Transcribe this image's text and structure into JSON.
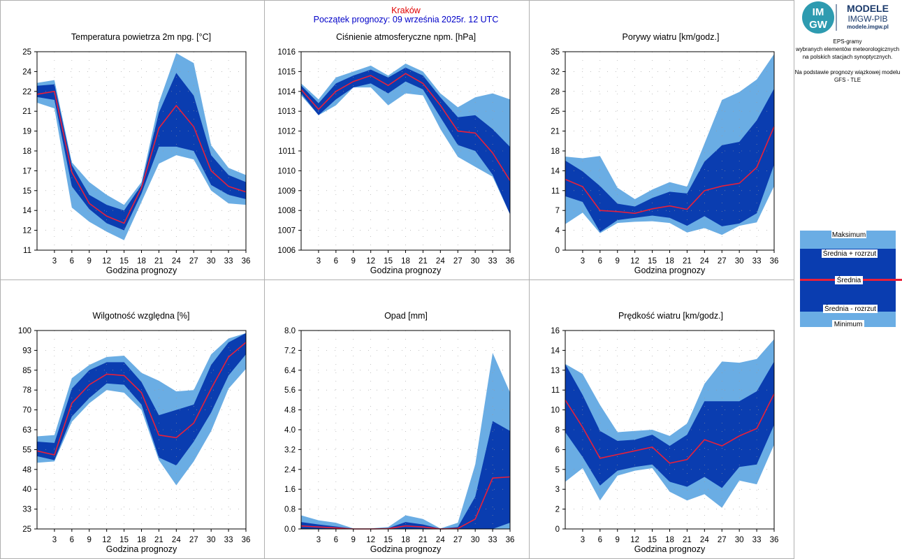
{
  "header": {
    "city": "Kraków",
    "start": "Początek prognozy: 09 września 2025r. 12 UTC"
  },
  "brand": {
    "logo_text_top": "IM",
    "logo_text_bottom": "GW",
    "name": "MODELE",
    "org": "IMGW-PIB",
    "site": "modele.imgw.pl",
    "colors": {
      "logo_bg": "#2e9bb0",
      "brand_text": "#1b3a6b"
    }
  },
  "info": [
    "EPS-gramy",
    "wybranych elementów meteorologicznych",
    "na polskich stacjach  synoptycznych.",
    "",
    "Na podstawie prognozy wiązkowej modelu",
    "GFS - TLE"
  ],
  "legend": {
    "max": "Maksimum",
    "mean_plus": "Średnia + rozrzut",
    "mean": "Średnia",
    "mean_minus": "Średnia - rozrzut",
    "min": "Minimum"
  },
  "colors": {
    "outer_band": "#6aade4",
    "inner_band": "#0a3db0",
    "mean_line": "#e8203a",
    "grid": "#9a9a9a"
  },
  "chart_data": [
    {
      "type": "area",
      "title": "Temperatura powietrza 2m npg. [°C]",
      "xlabel": "Godzina prognozy",
      "x": [
        0,
        3,
        6,
        9,
        12,
        15,
        18,
        21,
        24,
        27,
        30,
        33,
        36
      ],
      "xticks": [
        "3",
        "6",
        "9",
        "12",
        "15",
        "18",
        "21",
        "24",
        "27",
        "30",
        "33",
        "36"
      ],
      "ylim": [
        11,
        25
      ],
      "yticks": [
        "11",
        "12",
        "14",
        "15",
        "17",
        "18",
        "19",
        "21",
        "22",
        "24",
        "25"
      ],
      "max": [
        22.8,
        23.0,
        17.2,
        15.8,
        14.9,
        14.2,
        15.8,
        21.4,
        24.9,
        24.2,
        18.4,
        16.8,
        16.3
      ],
      "mean_plus": [
        22.6,
        22.7,
        17.0,
        14.9,
        14.2,
        13.8,
        15.6,
        20.7,
        23.5,
        21.9,
        17.7,
        16.3,
        15.8
      ],
      "mean": [
        22.0,
        22.2,
        16.5,
        14.3,
        13.4,
        12.9,
        15.4,
        19.6,
        21.2,
        19.7,
        16.6,
        15.5,
        15.1
      ],
      "mean_minus": [
        21.8,
        21.6,
        15.5,
        13.9,
        12.9,
        12.4,
        15.0,
        18.3,
        18.3,
        18.0,
        15.6,
        14.9,
        14.6
      ],
      "min": [
        21.4,
        21.0,
        14.0,
        13.0,
        12.3,
        11.7,
        14.4,
        17.1,
        17.7,
        17.4,
        15.2,
        14.3,
        14.2
      ]
    },
    {
      "type": "area",
      "title": "Ciśnienie atmosferyczne npm. [hPa]",
      "xlabel": "Godzina prognozy",
      "x": [
        0,
        3,
        6,
        9,
        12,
        15,
        18,
        21,
        24,
        27,
        30,
        33,
        36
      ],
      "xticks": [
        "3",
        "6",
        "9",
        "12",
        "15",
        "18",
        "21",
        "24",
        "27",
        "30",
        "33",
        "36"
      ],
      "ylim": [
        1006,
        1016
      ],
      "yticks": [
        "1006",
        "1007",
        "1008",
        "1009",
        "1010",
        "1011",
        "1012",
        "1013",
        "1014",
        "1015",
        "1016"
      ],
      "max": [
        1014.4,
        1013.6,
        1014.7,
        1015.0,
        1015.3,
        1014.8,
        1015.4,
        1015.0,
        1013.9,
        1013.2,
        1013.7,
        1013.9,
        1013.6
      ],
      "mean_plus": [
        1014.3,
        1013.4,
        1014.4,
        1014.8,
        1015.1,
        1014.7,
        1015.2,
        1014.8,
        1013.7,
        1012.7,
        1012.8,
        1012.1,
        1011.2
      ],
      "mean": [
        1014.1,
        1013.1,
        1014.0,
        1014.5,
        1014.8,
        1014.3,
        1014.9,
        1014.4,
        1013.3,
        1012.0,
        1011.9,
        1010.9,
        1009.5
      ],
      "mean_minus": [
        1013.9,
        1012.8,
        1013.6,
        1014.2,
        1014.4,
        1013.9,
        1014.5,
        1014.1,
        1012.7,
        1011.3,
        1011.0,
        1009.8,
        1007.8
      ],
      "min": [
        1013.8,
        1012.8,
        1013.3,
        1014.2,
        1014.2,
        1013.3,
        1013.9,
        1013.8,
        1012.1,
        1010.7,
        1010.2,
        1009.7,
        1007.8
      ]
    },
    {
      "type": "area",
      "title": "Porywy wiatru [km/godz.]",
      "xlabel": "Godzina prognozy",
      "x": [
        0,
        3,
        6,
        9,
        12,
        15,
        18,
        21,
        24,
        27,
        30,
        33,
        36
      ],
      "xticks": [
        "3",
        "6",
        "9",
        "12",
        "15",
        "18",
        "21",
        "24",
        "27",
        "30",
        "33",
        "36"
      ],
      "ylim": [
        0,
        35
      ],
      "yticks": [
        "0",
        "4",
        "7",
        "11",
        "14",
        "18",
        "21",
        "25",
        "28",
        "32",
        "35"
      ],
      "max": [
        16.5,
        16.2,
        16.6,
        11.0,
        9.0,
        10.7,
        12.0,
        11.2,
        18.8,
        26.5,
        27.9,
        30.1,
        34.6
      ],
      "mean_plus": [
        15.8,
        13.9,
        11.3,
        8.2,
        7.7,
        9.2,
        10.3,
        10.0,
        15.6,
        18.5,
        19.1,
        22.9,
        28.5
      ],
      "mean": [
        12.5,
        11.2,
        7.0,
        6.8,
        6.5,
        7.3,
        7.8,
        7.2,
        10.5,
        11.3,
        11.8,
        14.6,
        21.8
      ],
      "mean_minus": [
        9.5,
        8.5,
        3.2,
        5.3,
        5.7,
        6.1,
        5.7,
        4.3,
        6.0,
        4.2,
        4.7,
        6.5,
        15.1
      ],
      "min": [
        4.6,
        6.6,
        3.0,
        4.8,
        5.0,
        5.1,
        4.8,
        3.1,
        3.9,
        2.7,
        4.3,
        4.9,
        11.3
      ]
    },
    {
      "type": "area",
      "title": "Wilgotność względna [%]",
      "xlabel": "Godzina prognozy",
      "x": [
        0,
        3,
        6,
        9,
        12,
        15,
        18,
        21,
        24,
        27,
        30,
        33,
        36
      ],
      "xticks": [
        "3",
        "6",
        "9",
        "12",
        "15",
        "18",
        "21",
        "24",
        "27",
        "30",
        "33",
        "36"
      ],
      "ylim": [
        25,
        100
      ],
      "yticks": [
        "25",
        "33",
        "40",
        "48",
        "55",
        "63",
        "70",
        "78",
        "85",
        "93",
        "100"
      ],
      "max": [
        60.0,
        60.5,
        82.0,
        87.0,
        90.0,
        90.5,
        84.0,
        81.0,
        77.0,
        77.5,
        91.0,
        97.0,
        99.0
      ],
      "mean_plus": [
        58.0,
        57.5,
        78.0,
        85.0,
        88.0,
        88.0,
        80.5,
        68.0,
        70.0,
        72.0,
        87.0,
        95.5,
        99.0
      ],
      "mean": [
        54.5,
        53.0,
        72.5,
        79.5,
        83.5,
        83.0,
        76.5,
        60.5,
        59.5,
        65.0,
        78.0,
        90.0,
        95.5
      ],
      "mean_minus": [
        52.5,
        51.0,
        67.5,
        74.5,
        80.0,
        79.5,
        72.0,
        52.0,
        49.0,
        58.0,
        69.0,
        83.0,
        91.0
      ],
      "min": [
        50.0,
        50.5,
        65.5,
        72.5,
        77.5,
        76.5,
        70.0,
        51.0,
        41.5,
        50.5,
        62.0,
        78.0,
        85.5
      ]
    },
    {
      "type": "area",
      "title": "Opad [mm]",
      "xlabel": "Godzina prognozy",
      "x": [
        0,
        3,
        6,
        9,
        12,
        15,
        18,
        21,
        24,
        27,
        30,
        33,
        36
      ],
      "xticks": [
        "3",
        "6",
        "9",
        "12",
        "15",
        "18",
        "21",
        "24",
        "27",
        "30",
        "33",
        "36"
      ],
      "ylim": [
        0.0,
        8.0
      ],
      "yticks": [
        "0.0",
        "0.8",
        "1.6",
        "2.4",
        "3.2",
        "4.0",
        "4.8",
        "5.6",
        "6.4",
        "7.2",
        "8.0"
      ],
      "max": [
        0.55,
        0.35,
        0.25,
        0.02,
        0.02,
        0.08,
        0.55,
        0.4,
        0.02,
        0.25,
        2.6,
        7.1,
        5.5
      ],
      "mean_plus": [
        0.28,
        0.18,
        0.1,
        0.01,
        0.01,
        0.03,
        0.28,
        0.18,
        0.01,
        0.08,
        1.3,
        4.35,
        3.95
      ],
      "mean": [
        0.12,
        0.08,
        0.04,
        0.0,
        0.0,
        0.01,
        0.12,
        0.08,
        0.0,
        0.02,
        0.4,
        2.05,
        2.1
      ],
      "mean_minus": [
        0.0,
        0.0,
        0.0,
        0.0,
        0.0,
        0.0,
        0.0,
        0.0,
        0.0,
        0.0,
        0.0,
        0.0,
        0.25
      ],
      "min": [
        0.0,
        0.0,
        0.0,
        0.0,
        0.0,
        0.0,
        0.0,
        0.0,
        0.0,
        0.0,
        0.0,
        0.0,
        0.0
      ]
    },
    {
      "type": "area",
      "title": "Prędkość wiatru [km/godz.]",
      "xlabel": "Godzina prognozy",
      "x": [
        0,
        3,
        6,
        9,
        12,
        15,
        18,
        21,
        24,
        27,
        30,
        33,
        36
      ],
      "xticks": [
        "3",
        "6",
        "9",
        "12",
        "15",
        "18",
        "21",
        "24",
        "27",
        "30",
        "33",
        "36"
      ],
      "ylim": [
        0,
        16
      ],
      "yticks": [
        "0",
        "2",
        "3",
        "5",
        "6",
        "8",
        "10",
        "11",
        "13",
        "14",
        "16"
      ],
      "max": [
        13.3,
        12.5,
        10.0,
        7.8,
        7.9,
        8.0,
        7.5,
        8.5,
        11.7,
        13.5,
        13.4,
        13.7,
        15.3
      ],
      "mean_plus": [
        13.3,
        10.8,
        7.9,
        7.1,
        7.2,
        7.6,
        6.7,
        7.6,
        10.3,
        10.3,
        10.3,
        11.1,
        13.5
      ],
      "mean": [
        10.4,
        8.2,
        5.7,
        6.0,
        6.3,
        6.6,
        5.3,
        5.6,
        7.2,
        6.7,
        7.5,
        8.1,
        10.9
      ],
      "mean_minus": [
        7.8,
        5.8,
        3.5,
        4.7,
        5.0,
        5.2,
        3.8,
        3.4,
        4.2,
        3.3,
        5.0,
        5.2,
        8.4
      ],
      "min": [
        3.8,
        4.9,
        2.3,
        4.3,
        4.7,
        4.9,
        3.0,
        2.3,
        2.8,
        1.7,
        3.9,
        3.6,
        6.8
      ]
    }
  ]
}
